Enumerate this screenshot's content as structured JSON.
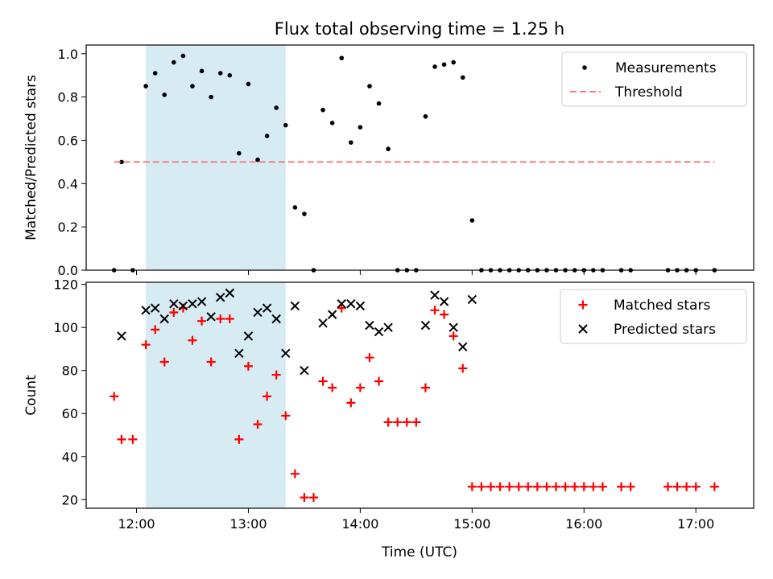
{
  "figure": {
    "title": "Flux total observing time = 1.25 h",
    "xlabel": "Time (UTC)"
  },
  "colors": {
    "measurement": "#000000",
    "threshold": "#f08080",
    "matched": "#ff0000",
    "predicted": "#000000",
    "span": "#add8e6"
  },
  "chart_data": [
    {
      "type": "scatter",
      "panel": "top",
      "ylabel": "Matched/Predicted stars",
      "xlim": [
        "11:33",
        "17:31"
      ],
      "ylim": [
        0.0,
        1.04
      ],
      "grid": false,
      "legend_position": "top-right",
      "x_tick_labels": [
        "12:00",
        "13:00",
        "14:00",
        "15:00",
        "16:00",
        "17:00"
      ],
      "y_tick_labels": [
        "0.0",
        "0.2",
        "0.4",
        "0.6",
        "0.8",
        "1.0"
      ],
      "highlight_span": [
        "12:05",
        "13:20"
      ],
      "series": [
        {
          "name": "Measurements",
          "marker": "dot",
          "points": [
            [
              "11:48",
              0.0
            ],
            [
              "11:52",
              0.5
            ],
            [
              "11:58",
              0.0
            ],
            [
              "12:05",
              0.85
            ],
            [
              "12:10",
              0.91
            ],
            [
              "12:15",
              0.81
            ],
            [
              "12:20",
              0.96
            ],
            [
              "12:25",
              0.99
            ],
            [
              "12:30",
              0.85
            ],
            [
              "12:35",
              0.92
            ],
            [
              "12:40",
              0.8
            ],
            [
              "12:45",
              0.91
            ],
            [
              "12:50",
              0.9
            ],
            [
              "12:55",
              0.54
            ],
            [
              "13:00",
              0.86
            ],
            [
              "13:05",
              0.51
            ],
            [
              "13:10",
              0.62
            ],
            [
              "13:15",
              0.75
            ],
            [
              "13:20",
              0.67
            ],
            [
              "13:25",
              0.29
            ],
            [
              "13:30",
              0.26
            ],
            [
              "13:35",
              0.0
            ],
            [
              "13:40",
              0.74
            ],
            [
              "13:45",
              0.68
            ],
            [
              "13:50",
              0.98
            ],
            [
              "13:55",
              0.59
            ],
            [
              "14:00",
              0.66
            ],
            [
              "14:05",
              0.85
            ],
            [
              "14:10",
              0.77
            ],
            [
              "14:15",
              0.56
            ],
            [
              "14:20",
              0.0
            ],
            [
              "14:25",
              0.0
            ],
            [
              "14:30",
              0.0
            ],
            [
              "14:35",
              0.71
            ],
            [
              "14:40",
              0.94
            ],
            [
              "14:45",
              0.95
            ],
            [
              "14:50",
              0.96
            ],
            [
              "14:55",
              0.89
            ],
            [
              "15:00",
              0.23
            ],
            [
              "15:05",
              0.0
            ],
            [
              "15:10",
              0.0
            ],
            [
              "15:15",
              0.0
            ],
            [
              "15:20",
              0.0
            ],
            [
              "15:25",
              0.0
            ],
            [
              "15:30",
              0.0
            ],
            [
              "15:35",
              0.0
            ],
            [
              "15:40",
              0.0
            ],
            [
              "15:45",
              0.0
            ],
            [
              "15:50",
              0.0
            ],
            [
              "15:55",
              0.0
            ],
            [
              "16:00",
              0.0
            ],
            [
              "16:05",
              0.0
            ],
            [
              "16:10",
              0.0
            ],
            [
              "16:20",
              0.0
            ],
            [
              "16:25",
              0.0
            ],
            [
              "16:45",
              0.0
            ],
            [
              "16:50",
              0.0
            ],
            [
              "16:55",
              0.0
            ],
            [
              "17:00",
              0.0
            ],
            [
              "17:10",
              0.0
            ]
          ]
        },
        {
          "name": "Threshold",
          "style": "dashed",
          "points": [
            [
              "11:48",
              0.5
            ],
            [
              "17:10",
              0.5
            ]
          ]
        }
      ]
    },
    {
      "type": "scatter",
      "panel": "bottom",
      "ylabel": "Count",
      "xlim": [
        "11:33",
        "17:31"
      ],
      "ylim": [
        16,
        121
      ],
      "grid": false,
      "legend_position": "top-right",
      "x_tick_labels": [
        "12:00",
        "13:00",
        "14:00",
        "15:00",
        "16:00",
        "17:00"
      ],
      "y_tick_labels": [
        "20",
        "40",
        "60",
        "80",
        "100",
        "120"
      ],
      "highlight_span": [
        "12:05",
        "13:20"
      ],
      "series": [
        {
          "name": "Matched stars",
          "marker": "plus",
          "points": [
            [
              "11:48",
              68
            ],
            [
              "11:52",
              48
            ],
            [
              "11:58",
              48
            ],
            [
              "12:05",
              92
            ],
            [
              "12:10",
              99
            ],
            [
              "12:15",
              84
            ],
            [
              "12:20",
              107
            ],
            [
              "12:25",
              109
            ],
            [
              "12:30",
              94
            ],
            [
              "12:35",
              103
            ],
            [
              "12:40",
              84
            ],
            [
              "12:45",
              104
            ],
            [
              "12:50",
              104
            ],
            [
              "12:55",
              48
            ],
            [
              "13:00",
              82
            ],
            [
              "13:05",
              55
            ],
            [
              "13:10",
              68
            ],
            [
              "13:15",
              78
            ],
            [
              "13:20",
              59
            ],
            [
              "13:25",
              32
            ],
            [
              "13:30",
              21
            ],
            [
              "13:35",
              21
            ],
            [
              "13:40",
              75
            ],
            [
              "13:45",
              72
            ],
            [
              "13:50",
              109
            ],
            [
              "13:55",
              65
            ],
            [
              "14:00",
              72
            ],
            [
              "14:05",
              86
            ],
            [
              "14:10",
              75
            ],
            [
              "14:15",
              56
            ],
            [
              "14:20",
              56
            ],
            [
              "14:25",
              56
            ],
            [
              "14:30",
              56
            ],
            [
              "14:35",
              72
            ],
            [
              "14:40",
              108
            ],
            [
              "14:45",
              106
            ],
            [
              "14:50",
              96
            ],
            [
              "14:55",
              81
            ],
            [
              "15:00",
              26
            ],
            [
              "15:05",
              26
            ],
            [
              "15:10",
              26
            ],
            [
              "15:15",
              26
            ],
            [
              "15:20",
              26
            ],
            [
              "15:25",
              26
            ],
            [
              "15:30",
              26
            ],
            [
              "15:35",
              26
            ],
            [
              "15:40",
              26
            ],
            [
              "15:45",
              26
            ],
            [
              "15:50",
              26
            ],
            [
              "15:55",
              26
            ],
            [
              "16:00",
              26
            ],
            [
              "16:05",
              26
            ],
            [
              "16:10",
              26
            ],
            [
              "16:20",
              26
            ],
            [
              "16:25",
              26
            ],
            [
              "16:45",
              26
            ],
            [
              "16:50",
              26
            ],
            [
              "16:55",
              26
            ],
            [
              "17:00",
              26
            ],
            [
              "17:10",
              26
            ]
          ]
        },
        {
          "name": "Predicted stars",
          "marker": "x",
          "points": [
            [
              "11:52",
              96
            ],
            [
              "12:05",
              108
            ],
            [
              "12:10",
              109
            ],
            [
              "12:15",
              104
            ],
            [
              "12:20",
              111
            ],
            [
              "12:25",
              110
            ],
            [
              "12:30",
              111
            ],
            [
              "12:35",
              112
            ],
            [
              "12:40",
              105
            ],
            [
              "12:45",
              114
            ],
            [
              "12:50",
              116
            ],
            [
              "12:55",
              88
            ],
            [
              "13:00",
              96
            ],
            [
              "13:05",
              107
            ],
            [
              "13:10",
              109
            ],
            [
              "13:15",
              104
            ],
            [
              "13:20",
              88
            ],
            [
              "13:25",
              110
            ],
            [
              "13:30",
              80
            ],
            [
              "13:40",
              102
            ],
            [
              "13:45",
              106
            ],
            [
              "13:50",
              111
            ],
            [
              "13:55",
              111
            ],
            [
              "14:00",
              110
            ],
            [
              "14:05",
              101
            ],
            [
              "14:10",
              98
            ],
            [
              "14:15",
              100
            ],
            [
              "14:35",
              101
            ],
            [
              "14:40",
              115
            ],
            [
              "14:45",
              112
            ],
            [
              "14:50",
              100
            ],
            [
              "14:55",
              91
            ],
            [
              "15:00",
              113
            ]
          ]
        }
      ]
    }
  ]
}
